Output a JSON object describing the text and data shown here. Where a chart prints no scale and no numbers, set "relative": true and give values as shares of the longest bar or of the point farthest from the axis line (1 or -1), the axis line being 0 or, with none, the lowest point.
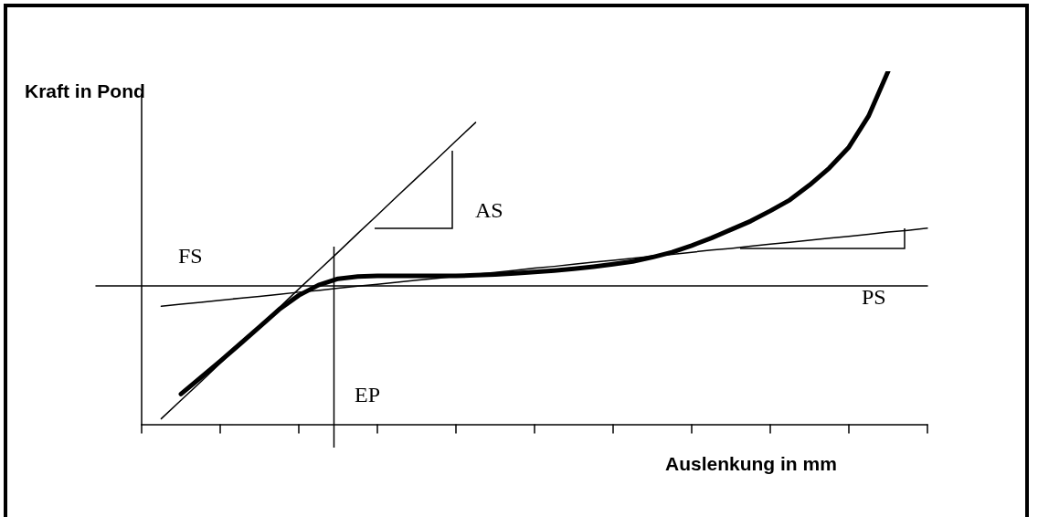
{
  "chart_data": {
    "type": "line",
    "relative": true,
    "xlabel": "Auslenkung in mm",
    "ylabel": "Kraft in Pond",
    "marker": "none",
    "line_style": "solid",
    "categories": [
      null,
      null,
      null,
      null,
      null,
      null,
      null,
      null,
      null,
      null,
      null,
      null,
      null,
      null,
      null,
      null,
      null,
      null,
      null,
      null,
      null,
      null,
      null,
      null,
      null,
      null,
      null,
      null,
      null,
      null,
      null,
      null,
      null,
      null,
      null,
      null,
      null,
      null,
      null,
      null,
      null
    ],
    "series": [
      {
        "color": "#000000",
        "values": [
          null,
          null,
          0.087,
          0.133,
          0.18,
          0.228,
          0.277,
          0.326,
          0.366,
          0.395,
          0.413,
          0.419,
          0.421,
          0.421,
          0.421,
          0.421,
          0.421,
          0.423,
          0.425,
          0.428,
          0.432,
          0.436,
          0.441,
          0.447,
          0.454,
          0.462,
          0.474,
          0.488,
          0.507,
          0.528,
          0.552,
          0.576,
          0.605,
          0.636,
          0.678,
          0.726,
          0.785,
          0.873,
          1.0,
          null,
          null
        ]
      },
      {
        "color": "#000000",
        "values": [
          null,
          0.017,
          0.069,
          0.121,
          0.174,
          0.226,
          0.279,
          0.331,
          0.384,
          0.436,
          0.488,
          0.541,
          0.593,
          0.646,
          0.698,
          0.75,
          0.803,
          0.855,
          null,
          null,
          null,
          null,
          null,
          null,
          null,
          null,
          null,
          null,
          null,
          null,
          null,
          null,
          null,
          null,
          null,
          null,
          null,
          null,
          null,
          null,
          null
        ]
      },
      {
        "color": "#000000",
        "values": [
          null,
          0.335,
          0.341,
          0.346,
          0.352,
          0.358,
          0.363,
          0.369,
          0.375,
          0.38,
          0.386,
          0.392,
          0.397,
          0.403,
          0.409,
          0.414,
          0.42,
          0.426,
          0.431,
          0.437,
          0.443,
          0.448,
          0.454,
          0.46,
          0.465,
          0.471,
          0.477,
          0.482,
          0.488,
          0.494,
          0.499,
          0.505,
          0.511,
          0.516,
          0.522,
          0.528,
          0.533,
          0.539,
          0.545,
          0.55,
          0.556
        ]
      }
    ],
    "ref_lines": [
      {
        "axis": "y",
        "value": 0.393,
        "color": "#000000"
      }
    ],
    "annotations": [
      "AS",
      "FS",
      "PS",
      "EP"
    ]
  }
}
